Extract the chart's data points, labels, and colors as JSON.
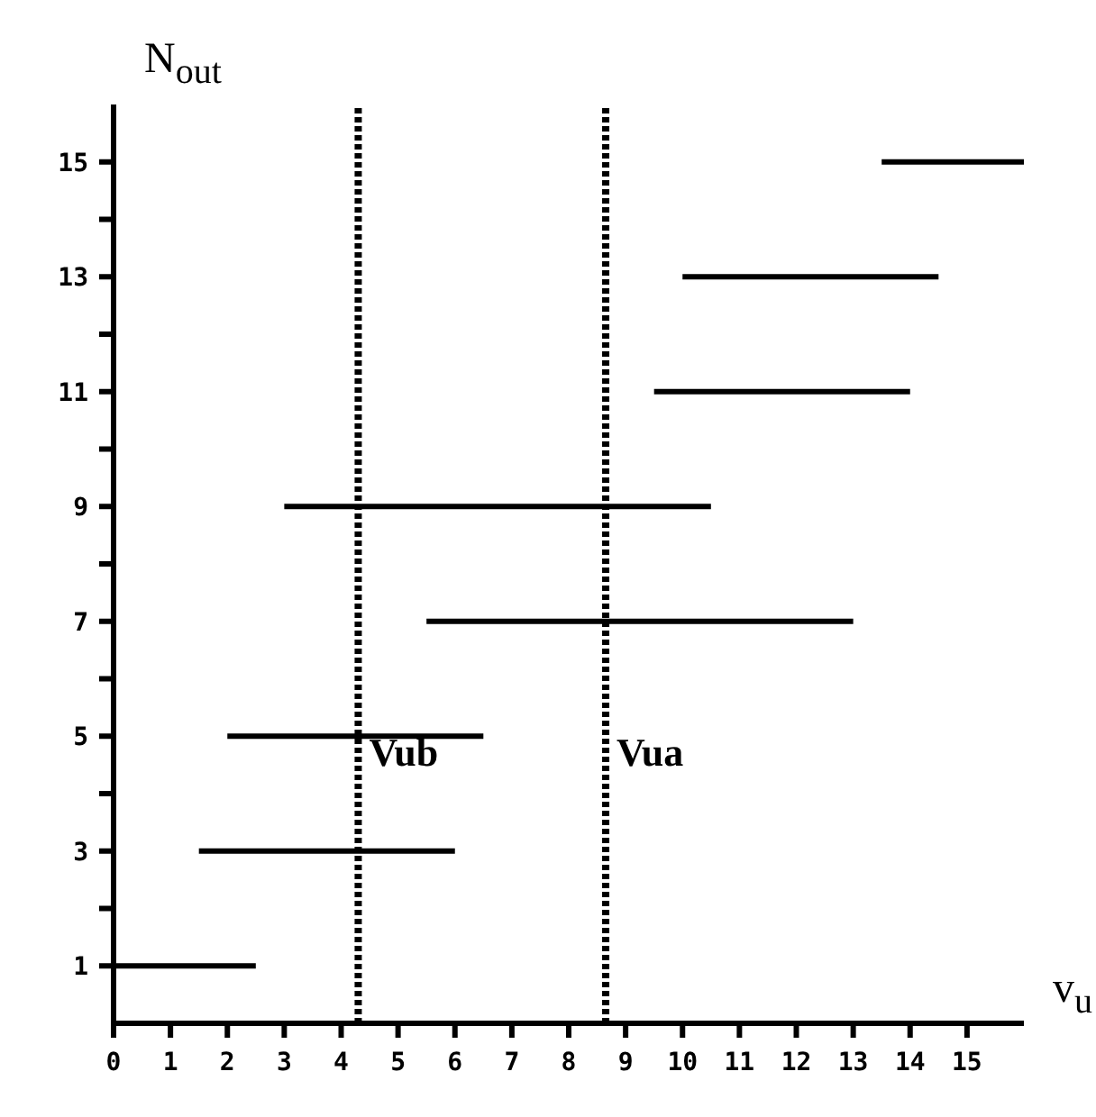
{
  "chart_data": {
    "type": "line",
    "xlabel": "v$_{u}$",
    "ylabel": "N$_{out}$",
    "xlim": [
      0,
      16
    ],
    "ylim": [
      0,
      16
    ],
    "xticks": [
      0,
      1,
      2,
      3,
      4,
      5,
      6,
      7,
      8,
      9,
      10,
      11,
      12,
      13,
      14,
      15
    ],
    "yticks": [
      1,
      {
        "value": 2,
        "label": null
      },
      3,
      {
        "value": 4,
        "label": null
      },
      5,
      {
        "value": 6,
        "label": null
      },
      7,
      {
        "value": 8,
        "label": null
      },
      9,
      {
        "value": 10,
        "label": null
      },
      11,
      {
        "value": 12,
        "label": null
      },
      13,
      {
        "value": 14,
        "label": null
      },
      15
    ],
    "marker": "none",
    "line_style": "solid",
    "series": [
      {
        "color": "#000000",
        "x": [
          0,
          2.5
        ],
        "values": [
          1,
          1
        ]
      },
      {
        "color": "#000000",
        "x": [
          1.5,
          6
        ],
        "values": [
          3,
          3
        ]
      },
      {
        "color": "#000000",
        "x": [
          2,
          6.5
        ],
        "values": [
          5,
          5
        ]
      },
      {
        "color": "#000000",
        "x": [
          5.5,
          13
        ],
        "values": [
          7,
          7
        ]
      },
      {
        "color": "#000000",
        "x": [
          3,
          10.5
        ],
        "values": [
          9,
          9
        ]
      },
      {
        "color": "#000000",
        "x": [
          9.5,
          14
        ],
        "values": [
          11,
          11
        ]
      },
      {
        "color": "#000000",
        "x": [
          10,
          14.5
        ],
        "values": [
          13,
          13
        ]
      },
      {
        "color": "#000000",
        "x": [
          13.5,
          16
        ],
        "values": [
          15,
          15
        ]
      }
    ],
    "ref_lines": [
      {
        "axis": "x",
        "value": 4.3,
        "label": "Vub",
        "color": "#000000",
        "line_style": "dotted"
      },
      {
        "axis": "x",
        "value": 8.65,
        "label": "Vua",
        "color": "#000000",
        "line_style": "dotted"
      }
    ]
  }
}
